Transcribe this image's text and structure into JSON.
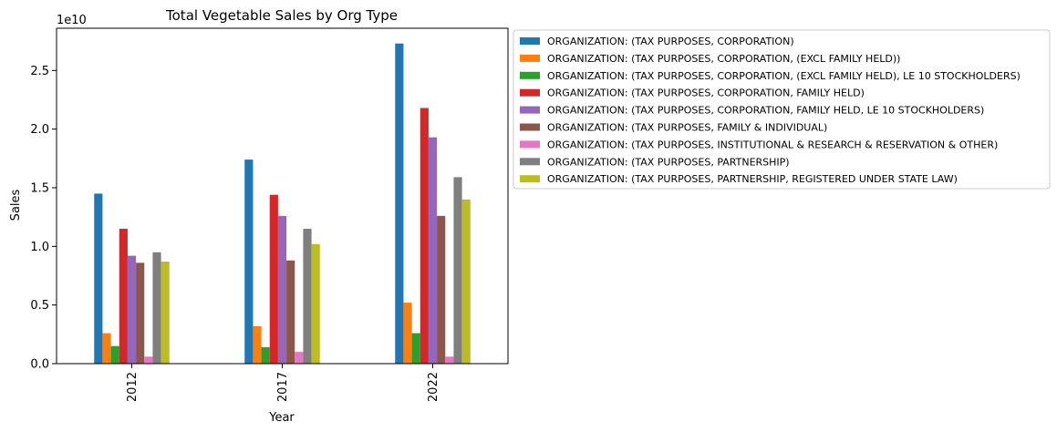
{
  "chart_data": {
    "type": "bar",
    "title": "Total Vegetable Sales by Org Type",
    "xlabel": "Year",
    "ylabel": "Sales",
    "y_offset_label": "1e10",
    "categories": [
      "2012",
      "2017",
      "2022"
    ],
    "ylim": [
      0,
      28600000000
    ],
    "yticks": [
      0,
      5000000000,
      10000000000,
      15000000000,
      20000000000,
      25000000000
    ],
    "ytick_labels": [
      "0.0",
      "0.5",
      "1.0",
      "1.5",
      "2.0",
      "2.5"
    ],
    "grid": false,
    "legend_position": "outside-right",
    "series": [
      {
        "name": "ORGANIZATION: (TAX PURPOSES, CORPORATION)",
        "color": "#1f77b4",
        "values": [
          14500000000,
          17400000000,
          27300000000
        ]
      },
      {
        "name": "ORGANIZATION: (TAX PURPOSES, CORPORATION, (EXCL FAMILY HELD))",
        "color": "#ff7f0e",
        "values": [
          2600000000,
          3200000000,
          5200000000
        ]
      },
      {
        "name": "ORGANIZATION: (TAX PURPOSES, CORPORATION, (EXCL FAMILY HELD), LE 10 STOCKHOLDERS)",
        "color": "#2ca02c",
        "values": [
          1500000000,
          1400000000,
          2600000000
        ]
      },
      {
        "name": "ORGANIZATION: (TAX PURPOSES, CORPORATION, FAMILY HELD)",
        "color": "#d62728",
        "values": [
          11500000000,
          14400000000,
          21800000000
        ]
      },
      {
        "name": "ORGANIZATION: (TAX PURPOSES, CORPORATION, FAMILY HELD, LE 10 STOCKHOLDERS)",
        "color": "#9467bd",
        "values": [
          9200000000,
          12600000000,
          19300000000
        ]
      },
      {
        "name": "ORGANIZATION: (TAX PURPOSES, FAMILY & INDIVIDUAL)",
        "color": "#8c564b",
        "values": [
          8600000000,
          8800000000,
          12600000000
        ]
      },
      {
        "name": "ORGANIZATION: (TAX PURPOSES, INSTITUTIONAL & RESEARCH & RESERVATION & OTHER)",
        "color": "#e377c2",
        "values": [
          600000000,
          1000000000,
          600000000
        ]
      },
      {
        "name": "ORGANIZATION: (TAX PURPOSES, PARTNERSHIP)",
        "color": "#7f7f7f",
        "values": [
          9500000000,
          11500000000,
          15900000000
        ]
      },
      {
        "name": "ORGANIZATION: (TAX PURPOSES, PARTNERSHIP, REGISTERED UNDER STATE LAW)",
        "color": "#bcbd22",
        "values": [
          8700000000,
          10200000000,
          14000000000
        ]
      }
    ]
  }
}
